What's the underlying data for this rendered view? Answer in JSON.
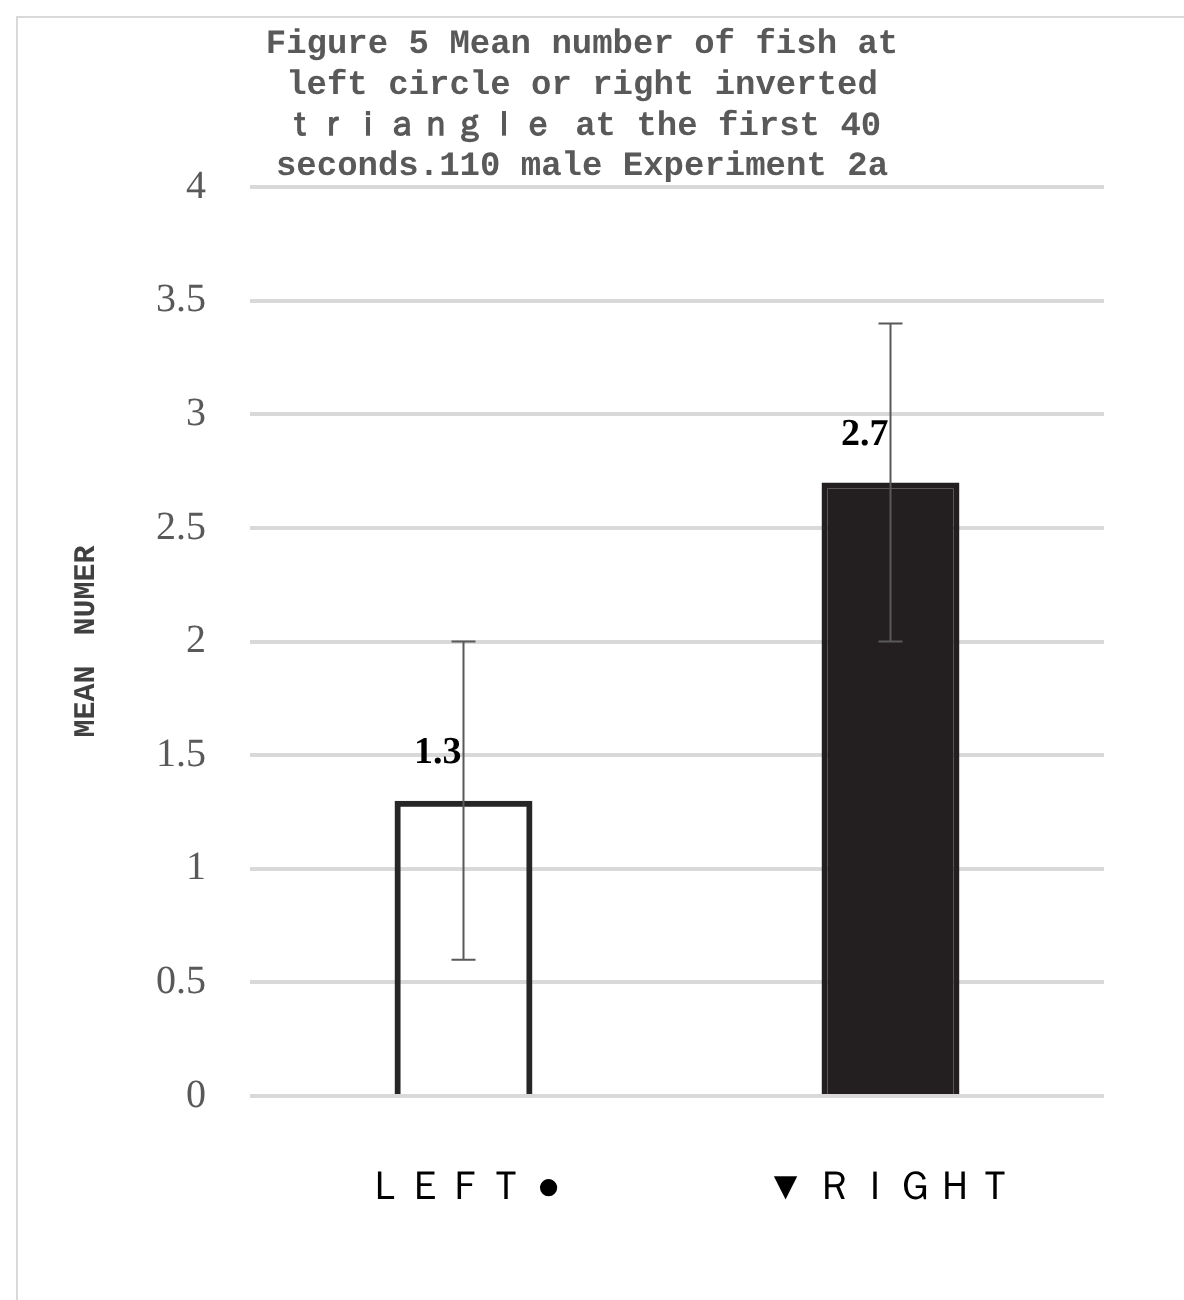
{
  "chart_data": {
    "type": "bar",
    "title": "Figure 5 Mean number of fish at left circle or right inverted ｔｒｉａｎｇｌｅ at the first 40 seconds.110 male Experiment 2a",
    "ylabel": "MEAN　NUMER",
    "categories": [
      "ＬＥＦＴ ●",
      "▼ ＲＩＧＨＴ"
    ],
    "values": [
      1.3,
      2.7
    ],
    "colors": [
      "#262626",
      "#231f20"
    ],
    "errors": [
      0.7,
      0.7
    ],
    "data_labels": true,
    "ylim": [
      0,
      4
    ],
    "yticks": [
      0,
      0.5,
      1,
      1.5,
      2,
      2.5,
      3,
      3.5,
      4
    ],
    "grid": "y",
    "legend": false
  }
}
